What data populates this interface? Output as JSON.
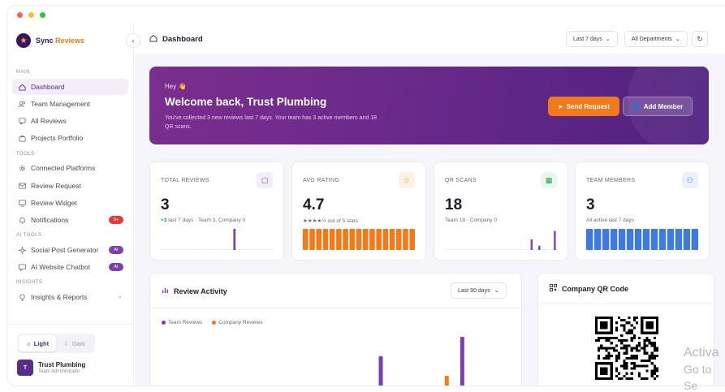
{
  "brand": {
    "name_part1": "Sync",
    "name_part2": "Reviews"
  },
  "sidebar": {
    "sections": {
      "main": "MAIN",
      "tools": "TOOLS",
      "ai_tools": "AI TOOLS",
      "insights": "INSIGHTS"
    },
    "main_items": [
      {
        "label": "Dashboard",
        "icon": "home-icon"
      },
      {
        "label": "Team Management",
        "icon": "team-icon"
      },
      {
        "label": "All Reviews",
        "icon": "reviews-icon"
      },
      {
        "label": "Projects Portfolio",
        "icon": "portfolio-icon"
      }
    ],
    "tools_items": [
      {
        "label": "Connected Platforms",
        "icon": "gear-icon"
      },
      {
        "label": "Review Request",
        "icon": "mail-icon"
      },
      {
        "label": "Review Widget",
        "icon": "widget-icon"
      },
      {
        "label": "Notifications",
        "icon": "bell-icon",
        "badge": "9+"
      }
    ],
    "ai_items": [
      {
        "label": "Social Post Generator",
        "icon": "sparkle-icon",
        "badge": "AI"
      },
      {
        "label": "AI Website Chatbot",
        "icon": "chat-icon",
        "badge": "AI"
      }
    ],
    "insights_items": [
      {
        "label": "Insights & Reports",
        "icon": "lightbulb-icon"
      }
    ],
    "theme": {
      "light": "Light",
      "dark": "Dark"
    },
    "user": {
      "initial": "T",
      "name": "Trust Plumbing",
      "role": "Team Administrator"
    }
  },
  "header": {
    "title": "Dashboard",
    "period": "Last 7 days",
    "department": "All Departments"
  },
  "hero": {
    "greeting": "Hey 👋",
    "title": "Welcome back, Trust Plumbing",
    "subtitle": "You've collected 3 new reviews last 7 days. Your team has 3 active members and 18 QR scans.",
    "send_button": "Send Request",
    "add_button": "Add Member"
  },
  "stats": [
    {
      "label": "TOTAL REVIEWS",
      "value": "3",
      "delta": "+3",
      "sub": " last 7 days · Team 3, Company 0",
      "accent": "#7b3fb0",
      "icon_bg": "#f3ecf9",
      "icon": "message-icon"
    },
    {
      "label": "AVG RATING",
      "value": "4.7",
      "sub": "★★★★½ out of 5 stars",
      "accent": "#f27a1a",
      "icon_bg": "#fdf1e6",
      "icon": "star-icon"
    },
    {
      "label": "QR SCANS",
      "value": "18",
      "sub": "Team 18 · Company 0",
      "accent": "#7b3fb0",
      "icon_bg": "#e8f6ec",
      "icon": "grid-icon"
    },
    {
      "label": "TEAM MEMBERS",
      "value": "3",
      "sub": "All active last 7 days",
      "accent": "#3d7be0",
      "icon_bg": "#e9f1fc",
      "icon": "users-icon"
    }
  ],
  "spark": {
    "total_reviews": [
      0,
      0,
      0,
      0,
      0,
      0,
      0,
      0,
      0,
      0,
      0,
      0,
      0,
      0,
      0,
      0,
      1,
      0,
      0,
      0,
      0,
      0,
      0,
      0,
      0
    ],
    "qr_scans": [
      0,
      0,
      0,
      0,
      0,
      0,
      0,
      0,
      0,
      0,
      0,
      0,
      0,
      0,
      0,
      0,
      0,
      0,
      0,
      0,
      0,
      0,
      0.5,
      0,
      0.2,
      0,
      0,
      0,
      0.9
    ],
    "avg_rating_bars": 17,
    "team_bars": 14
  },
  "activity": {
    "title": "Review Activity",
    "range": "Last 90 days",
    "legend": [
      {
        "name": "Team Reviews",
        "color": "#7b3fb0"
      },
      {
        "name": "Company Reviews",
        "color": "#f27a1a"
      }
    ]
  },
  "chart_data": {
    "type": "bar",
    "series": [
      {
        "name": "Team Reviews",
        "values": [
          0,
          0,
          0,
          0,
          0,
          0,
          0,
          0,
          0,
          0,
          0,
          0,
          0,
          0,
          0,
          0,
          0,
          0,
          0,
          0,
          0,
          0,
          0,
          0,
          0,
          0,
          0,
          0,
          0,
          0,
          0,
          0,
          0,
          0,
          0,
          0,
          0,
          0,
          0,
          0,
          0,
          0,
          0,
          0,
          0,
          0,
          0,
          0,
          0,
          0,
          0,
          0,
          0,
          0,
          0,
          0,
          2,
          0,
          0,
          0,
          0,
          0,
          0,
          0,
          0,
          0,
          0,
          0,
          0,
          0,
          0,
          0,
          0,
          0,
          0,
          0,
          0,
          3,
          0,
          0,
          0,
          0,
          0,
          0,
          0,
          0,
          0,
          0,
          0,
          0
        ]
      },
      {
        "name": "Company Reviews",
        "values": [
          0,
          0,
          0,
          0,
          0,
          0,
          0,
          0,
          0,
          0,
          0,
          0,
          0,
          0,
          0,
          0,
          0,
          0,
          0,
          0,
          0,
          0,
          0,
          0,
          0,
          0,
          0,
          0,
          0,
          0,
          0,
          0,
          0,
          0,
          0,
          0,
          0,
          0,
          0,
          0,
          0,
          0,
          0,
          0,
          0,
          0,
          0,
          0,
          0,
          0,
          0,
          0,
          0,
          0,
          0,
          0,
          0,
          0,
          0,
          0,
          0,
          0,
          0,
          0,
          0,
          0,
          0,
          0,
          0,
          0,
          0,
          0,
          0,
          1,
          0,
          0,
          0,
          0,
          0,
          0,
          0,
          0,
          0,
          0,
          0,
          0,
          0,
          0,
          0,
          0
        ]
      }
    ]
  },
  "qr": {
    "title": "Company QR Code"
  },
  "watermark": {
    "line1": "Activa",
    "line2": "Go to Se"
  }
}
